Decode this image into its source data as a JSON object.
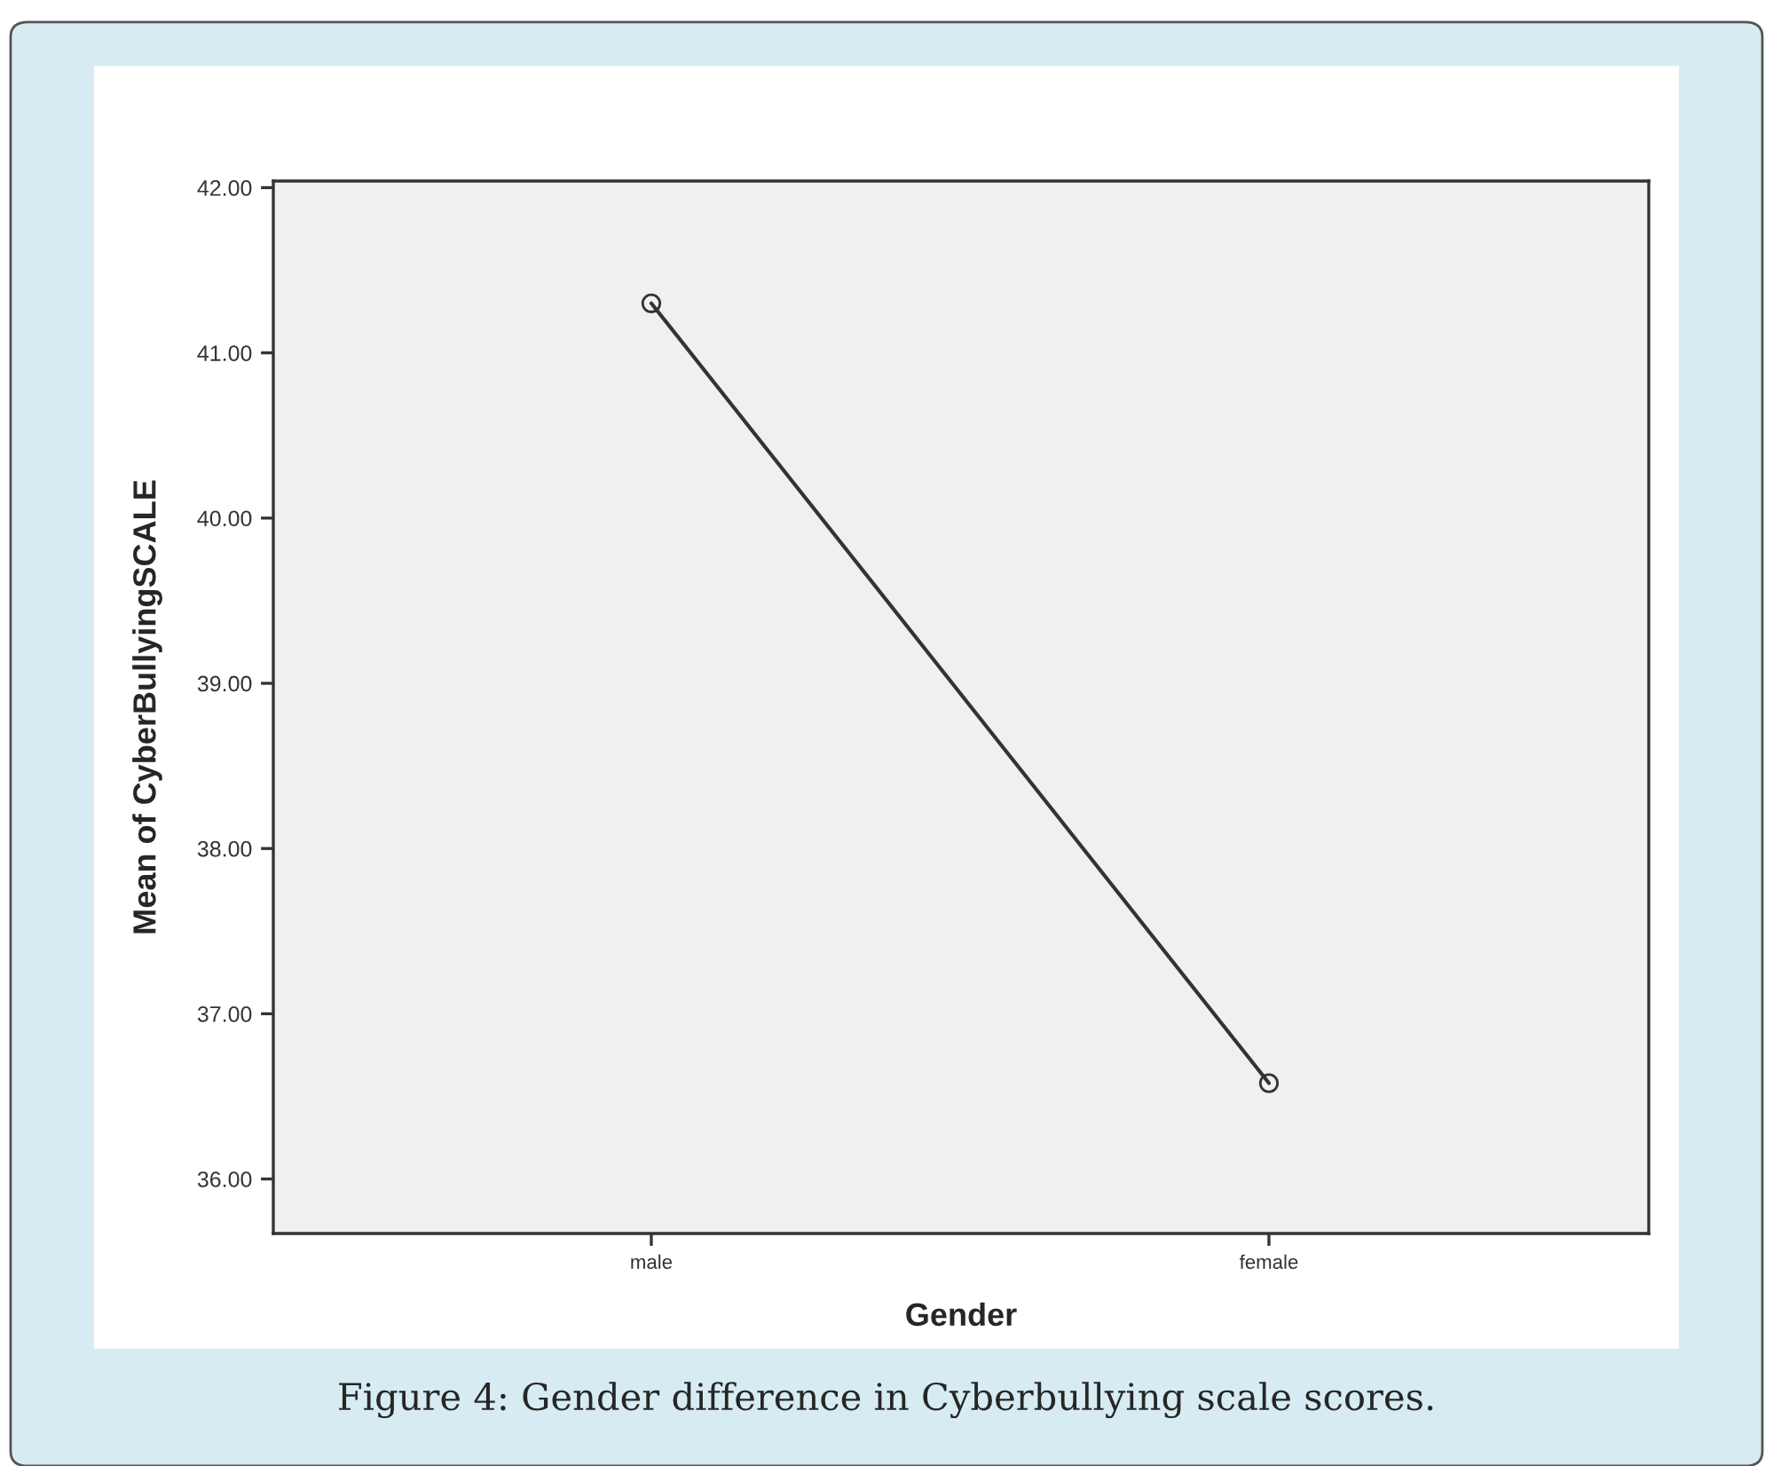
{
  "chart_data": {
    "type": "line",
    "xlabel": "Gender",
    "ylabel": "Mean of CyberBullyingSCALE",
    "categories": [
      "male",
      "female"
    ],
    "series": [
      {
        "color": "#333333",
        "values": [
          41.3,
          36.58
        ]
      }
    ],
    "ylim": [
      35.67,
      42.04
    ],
    "yticks": [
      {
        "value": 36,
        "label": "36.00"
      },
      {
        "value": 37,
        "label": "37.00"
      },
      {
        "value": 38,
        "label": "38.00"
      },
      {
        "value": 39,
        "label": "39.00"
      },
      {
        "value": 40,
        "label": "40.00"
      },
      {
        "value": 41,
        "label": "41.00"
      },
      {
        "value": 42,
        "label": "42.00"
      }
    ],
    "marker": "circle",
    "line_style": "solid",
    "grid": false,
    "legend": false,
    "annotations": [
      "Figure 4: Gender difference in Cyberbullying scale scores."
    ]
  }
}
